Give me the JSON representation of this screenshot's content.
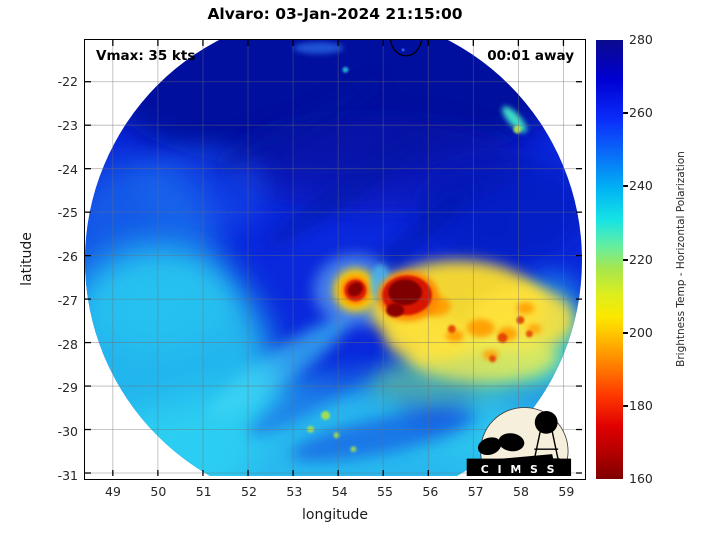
{
  "title": "Alvaro: 03-Jan-2024 21:15:00",
  "annotations": {
    "vmax": "Vmax: 35 kts",
    "time_offset": "00:01 away"
  },
  "x_axis": {
    "label": "longitude",
    "ticks": [
      49,
      50,
      51,
      52,
      53,
      54,
      55,
      56,
      57,
      58,
      59
    ]
  },
  "y_axis": {
    "label": "latitude",
    "ticks": [
      -22,
      -23,
      -24,
      -25,
      -26,
      -27,
      -28,
      -29,
      -30,
      -31
    ]
  },
  "colorbar": {
    "label": "Brightness Temp - Horizontal Polarization",
    "ticks": [
      280,
      260,
      240,
      220,
      200,
      180,
      160
    ],
    "min": 160,
    "max": 280
  },
  "logo": {
    "text": "C I M S S"
  },
  "chart_data": {
    "type": "heatmap",
    "title": "Alvaro: 03-Jan-2024 21:15:00",
    "xlabel": "longitude",
    "ylabel": "latitude",
    "xlim": [
      48.4,
      59.4
    ],
    "ylim": [
      -31.1,
      -21.0
    ],
    "xticks": [
      49,
      50,
      51,
      52,
      53,
      54,
      55,
      56,
      57,
      58,
      59
    ],
    "yticks": [
      -22,
      -23,
      -24,
      -25,
      -26,
      -27,
      -28,
      -29,
      -30,
      -31
    ],
    "grid": true,
    "colorbar": {
      "label": "Brightness Temp - Horizontal Polarization",
      "range_k": [
        160,
        280
      ],
      "ticks": [
        160,
        180,
        200,
        220,
        240,
        260,
        280
      ],
      "colormap": "reversed-jet (dark blue = 280 K warm, dark red = 160 K cold)"
    },
    "swath": {
      "shape": "circular microwave swath",
      "center_lon": 54.5,
      "center_lat": -26.1,
      "radius_deg": 5.5
    },
    "annotations": [
      "Vmax: 35 kts (top-left)",
      "00:01 away (top-right)",
      "CIMSS logo (bottom-right)"
    ],
    "features": [
      {
        "name": "warm-background-field",
        "tb_k": 258,
        "desc": "royal/dark blue covers most of swath, darkest (~270 K) along north"
      },
      {
        "name": "cool-periphery",
        "tb_k": 242,
        "desc": "cyan band along southwest, south and southeast swath edges"
      },
      {
        "name": "hot-spot-west-core",
        "lon": 54.4,
        "lat": -26.8,
        "tb_k": 170,
        "desc": "small dark-red minimum ringed by yellow/orange"
      },
      {
        "name": "hot-spot-east-core",
        "lon": 55.5,
        "lat": -27.0,
        "tb_k": 163,
        "desc": "largest dark-red convective minimum with red rim"
      },
      {
        "name": "convective-band-southeast",
        "lon_range": [
          55.0,
          58.5
        ],
        "lat_range": [
          -29.0,
          -26.3
        ],
        "tb_k": 205,
        "desc": "yellow/orange arc with embedded red speckles"
      },
      {
        "name": "edge-cold-streak-northeast",
        "lon": 57.9,
        "lat": -22.9,
        "tb_k": 230,
        "desc": "small cyan-green streak at swath edge"
      },
      {
        "name": "speckles-south",
        "lon": 53.8,
        "lat": -29.7,
        "tb_k": 222,
        "desc": "scattered yellow-green pixels in cyan region"
      },
      {
        "name": "contour-arc-north",
        "lon": 55.5,
        "lat": -21.1,
        "desc": "small black open contour at top axis"
      }
    ]
  }
}
